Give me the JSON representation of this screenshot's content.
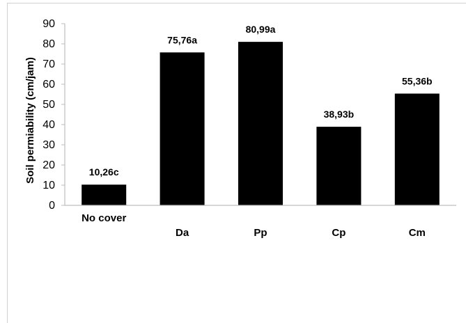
{
  "chart_data": {
    "type": "bar",
    "title": "",
    "xlabel": "",
    "ylabel": "Soil permiability  (cm/jam)",
    "categories": [
      "No cover",
      "Da",
      "Pp",
      "Cp",
      "Cm"
    ],
    "values": [
      10.26,
      75.76,
      80.99,
      38.93,
      55.36
    ],
    "data_labels": [
      "10,26c",
      "75,76a",
      "80,99a",
      "38,93b",
      "55,36b"
    ],
    "ylim": [
      0,
      90
    ],
    "yticks": [
      0,
      10,
      20,
      30,
      40,
      50,
      60,
      70,
      80,
      90
    ],
    "grid": false,
    "legend": "none",
    "bar_color": "#000000"
  }
}
